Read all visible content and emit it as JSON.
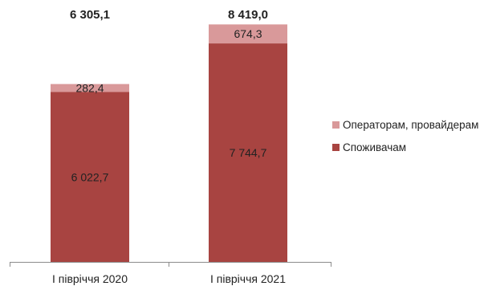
{
  "chart_data": {
    "type": "bar",
    "stacked": true,
    "categories": [
      "I півріччя 2020",
      "I півріччя 2021"
    ],
    "series": [
      {
        "name": "Споживачам",
        "values": [
          6022.7,
          7744.7
        ],
        "labels": [
          "6 022,7",
          "7 744,7"
        ],
        "color": "#a84441"
      },
      {
        "name": "Операторам, провайдерам",
        "values": [
          282.4,
          674.3
        ],
        "labels": [
          "282,4",
          "674,3"
        ],
        "color": "#d9999a"
      }
    ],
    "totals": [
      6305.1,
      8419.0
    ],
    "total_labels": [
      "6 305,1",
      "8 419,0"
    ],
    "ylim": [
      0,
      8800
    ],
    "grid": false,
    "legend": "right",
    "title": "",
    "xlabel": "",
    "ylabel": ""
  }
}
